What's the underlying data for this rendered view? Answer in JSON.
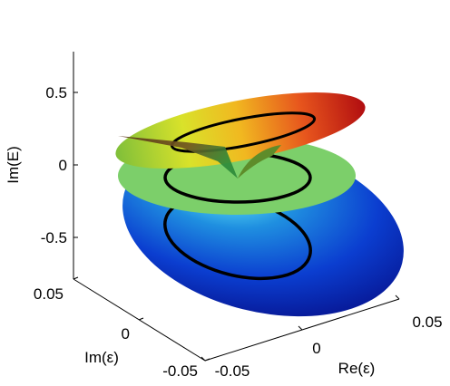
{
  "chart_data": {
    "type": "surface3d",
    "title": "",
    "axes": {
      "z": {
        "label": "Im(E)",
        "ticks": [
          "0.5",
          "0",
          "-0.5"
        ],
        "values": [
          0.5,
          0,
          -0.5
        ],
        "range": [
          -0.75,
          0.75
        ]
      },
      "y": {
        "label": "Im(ε)",
        "ticks": [
          "0.05",
          "0",
          "-0.05"
        ],
        "values": [
          0.05,
          0,
          -0.05
        ],
        "range": [
          -0.05,
          0.05
        ]
      },
      "x": {
        "label": "Re(ε)",
        "ticks": [
          "-0.05",
          "0",
          "0.05"
        ],
        "values": [
          -0.05,
          0,
          0.05
        ],
        "range": [
          -0.05,
          0.05
        ]
      }
    },
    "surfaces": [
      {
        "name": "upper",
        "level": 0.4,
        "colormap": "jet"
      },
      {
        "name": "middle",
        "level": 0.0,
        "color": "#7ccf6a"
      },
      {
        "name": "lower",
        "level": -0.45,
        "colormap": "jet"
      }
    ],
    "loop_paths": 3,
    "grid": false,
    "legend": "none"
  }
}
